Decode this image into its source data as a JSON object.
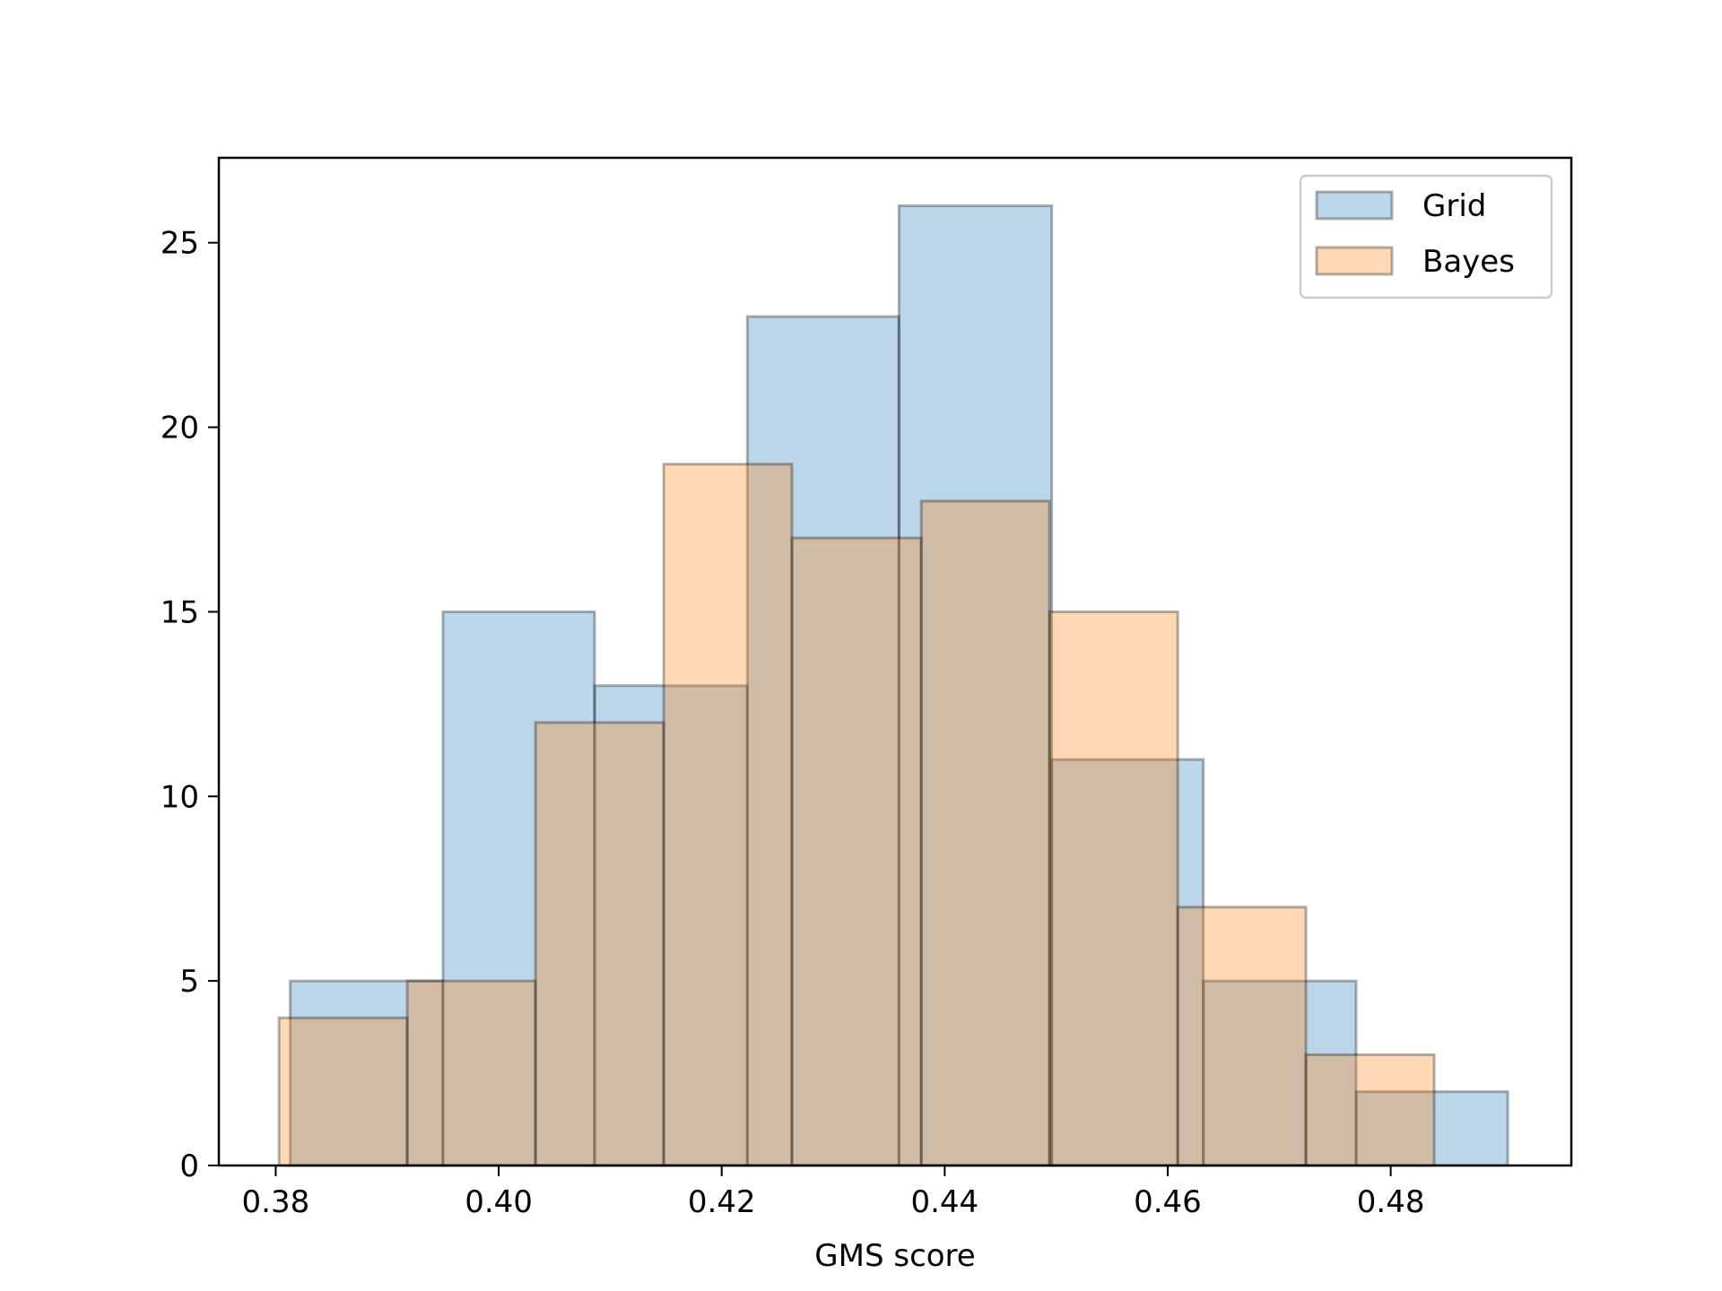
{
  "chart_data": {
    "type": "histogram",
    "xlabel": "GMS score",
    "ylabel": "",
    "xlim": [
      0.3749,
      0.4962
    ],
    "ylim": [
      0,
      27.3
    ],
    "x_ticks": [
      "0.38",
      "0.40",
      "0.42",
      "0.44",
      "0.46",
      "0.48"
    ],
    "y_ticks": [
      "0",
      "5",
      "10",
      "15",
      "20",
      "25"
    ],
    "grid": false,
    "legend_position": "top-right",
    "series": [
      {
        "name": "Grid",
        "color": "#1f77b4",
        "bins": [
          {
            "x0": 0.3813,
            "x1": 0.395,
            "count": 5
          },
          {
            "x0": 0.395,
            "x1": 0.4086,
            "count": 15
          },
          {
            "x0": 0.4086,
            "x1": 0.4223,
            "count": 13
          },
          {
            "x0": 0.4223,
            "x1": 0.4359,
            "count": 23
          },
          {
            "x0": 0.4359,
            "x1": 0.4496,
            "count": 26
          },
          {
            "x0": 0.4496,
            "x1": 0.4632,
            "count": 11
          },
          {
            "x0": 0.4632,
            "x1": 0.4769,
            "count": 5
          },
          {
            "x0": 0.4769,
            "x1": 0.4905,
            "count": 2
          }
        ]
      },
      {
        "name": "Bayes",
        "color": "#ff7f0e",
        "bins": [
          {
            "x0": 0.3803,
            "x1": 0.3918,
            "count": 4
          },
          {
            "x0": 0.3918,
            "x1": 0.4033,
            "count": 5
          },
          {
            "x0": 0.4033,
            "x1": 0.4148,
            "count": 12
          },
          {
            "x0": 0.4148,
            "x1": 0.4263,
            "count": 19
          },
          {
            "x0": 0.4263,
            "x1": 0.4379,
            "count": 17
          },
          {
            "x0": 0.4379,
            "x1": 0.4494,
            "count": 18
          },
          {
            "x0": 0.4494,
            "x1": 0.4609,
            "count": 15
          },
          {
            "x0": 0.4609,
            "x1": 0.4724,
            "count": 7
          },
          {
            "x0": 0.4724,
            "x1": 0.4839,
            "count": 3
          }
        ]
      }
    ]
  }
}
